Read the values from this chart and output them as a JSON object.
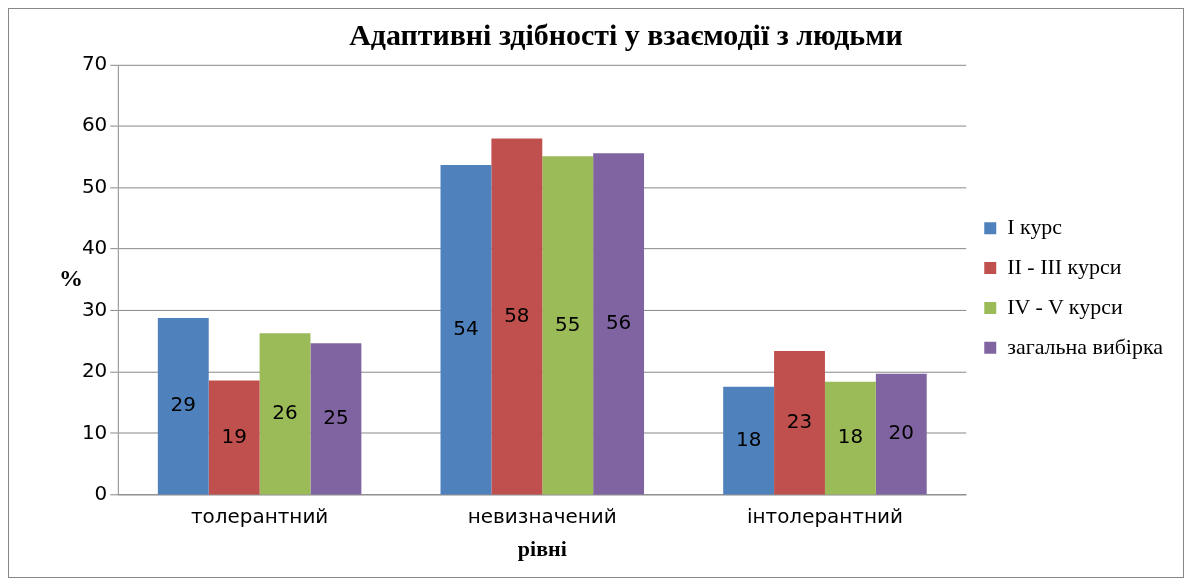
{
  "chart_data": {
    "type": "bar",
    "title": "Адаптивні здібності у взаємодії з людьми",
    "xlabel": "рівні",
    "ylabel": "%",
    "categories": [
      "толерантний",
      "невизначений",
      "інтолерантний"
    ],
    "series": [
      {
        "name": "І курс",
        "color": "#4f81bd",
        "values": [
          28.8,
          53.7,
          17.6
        ],
        "value_labels": [
          "29",
          "54",
          "18"
        ]
      },
      {
        "name": "ІІ - ІІІ курси",
        "color": "#c0504d",
        "values": [
          18.6,
          58.0,
          23.4
        ],
        "value_labels": [
          "19",
          "58",
          "23"
        ]
      },
      {
        "name": "ІV - V курси",
        "color": "#9bbb59",
        "values": [
          26.3,
          55.1,
          18.4
        ],
        "value_labels": [
          "26",
          "55",
          "18"
        ]
      },
      {
        "name": "загальна вибірка",
        "color": "#8064a2",
        "values": [
          24.7,
          55.6,
          19.7
        ],
        "value_labels": [
          "25",
          "56",
          "20"
        ]
      }
    ],
    "ylim": [
      0,
      70
    ],
    "yticks": [
      0,
      10,
      20,
      30,
      40,
      50,
      60,
      70
    ],
    "grid": "y",
    "legend": "right"
  }
}
